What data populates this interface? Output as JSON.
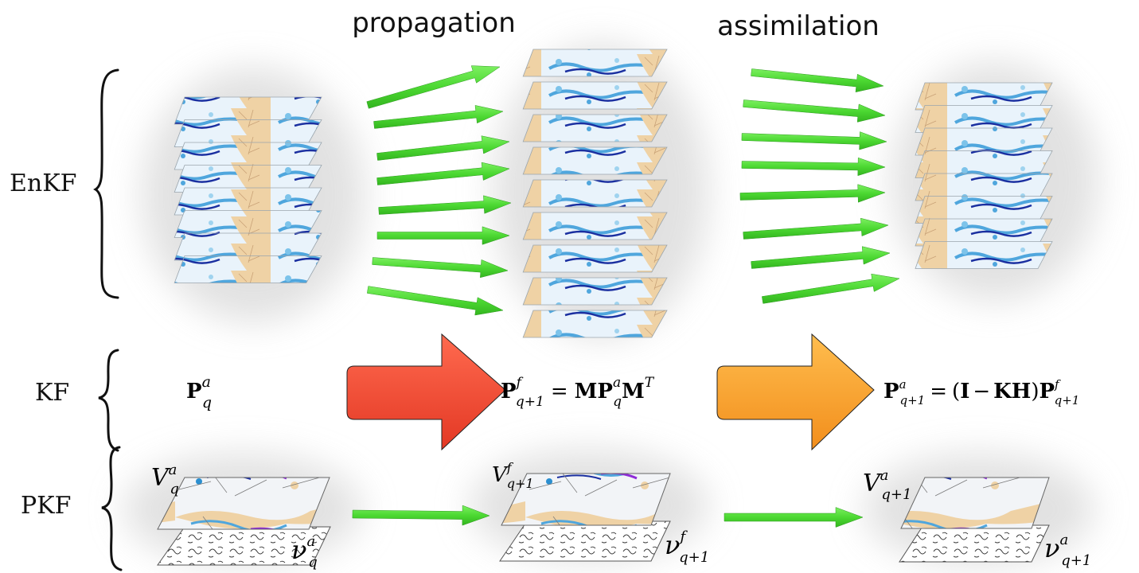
{
  "headers": {
    "propagation": "propagation",
    "assimilation": "assimilation"
  },
  "rows": {
    "enkf": "EnKF",
    "kf": "KF",
    "pkf": "PKF"
  },
  "kf": {
    "analysis": {
      "sym": "P",
      "sup": "a",
      "sub": "q"
    },
    "forecast": {
      "sym": "P",
      "sup": "f",
      "sub": "q+1",
      "eq": "=",
      "rhs_bold_1": "MP",
      "rhs_sup": "a",
      "rhs_sub": "q",
      "rhs_bold_2": "M",
      "rhs_sup_2": "T"
    },
    "update": {
      "sym": "P",
      "sup": "a",
      "sub": "q+1",
      "eq": "=",
      "open": "(",
      "ident": "I",
      "minus": "−",
      "kh": "KH",
      "close": ")",
      "tail": "P",
      "tail_sup": "f",
      "tail_sub": "q+1"
    }
  },
  "pkf": {
    "stage1": {
      "v_sym": "V",
      "v_sup": "a",
      "v_sub": "q",
      "nu_sym": "ν",
      "nu_sup": "a",
      "nu_sub": "q"
    },
    "stage2": {
      "v_sym": "V",
      "v_sup": "f",
      "v_sub": "q+1",
      "nu_sym": "ν",
      "nu_sup": "f",
      "nu_sub": "q+1"
    },
    "stage3": {
      "v_sym": "V",
      "v_sup": "a",
      "v_sub": "q+1",
      "nu_sym": "ν",
      "nu_sup": "a",
      "nu_sub": "q+1"
    }
  },
  "colors": {
    "green_arrow": "#4cd832",
    "red_arrow": "#f44a35",
    "orange_arrow": "#f7a133",
    "map_water": "#e9f3fb",
    "map_blue": "#4fa6dd",
    "map_dark": "#1a2fa0",
    "map_land": "#efd2a5"
  }
}
